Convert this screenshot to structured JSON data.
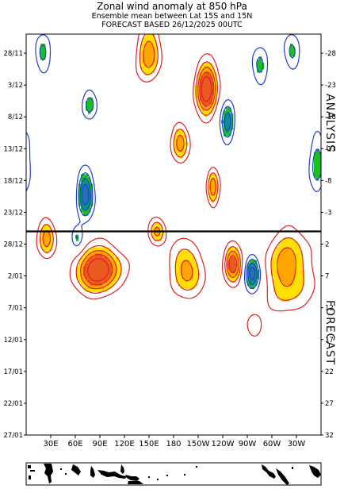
{
  "header": {
    "title": "Zonal wind anomaly at 850 hPa",
    "subtitle": "Ensemble mean between  Lat 15S and 15N",
    "forecast_line": "FORECAST  BASED 26/12/2025 00UTC"
  },
  "panel_labels": {
    "analysis": "ANALYSIS",
    "forecast": "FORECAST"
  },
  "chart_data": {
    "type": "heatmap",
    "title": "Zonal wind anomaly at 850 hPa",
    "x_tick_labels": [
      "30E",
      "60E",
      "90E",
      "120E",
      "150E",
      "180",
      "150W",
      "120W",
      "90W",
      "60W",
      "30W"
    ],
    "x_tick_longitudes": [
      30,
      60,
      90,
      120,
      150,
      180,
      210,
      240,
      270,
      300,
      330
    ],
    "xlim": [
      0,
      360
    ],
    "y_left_tick_labels": [
      "28/11",
      "3/12",
      "8/12",
      "13/12",
      "18/12",
      "23/12",
      "28/12",
      "2/01",
      "7/01",
      "12/01",
      "17/01",
      "22/01",
      "27/01"
    ],
    "y_right_tick_labels": [
      "-28",
      "-23",
      "-18",
      "-13",
      "-8",
      "-3",
      "2",
      "7",
      "12",
      "17",
      "22",
      "27",
      "32"
    ],
    "y_tick_day_index": [
      0,
      5,
      10,
      15,
      20,
      25,
      30,
      35,
      40,
      45,
      50,
      55,
      60
    ],
    "ylim_days": [
      -3,
      60
    ],
    "forecast_start_day": 28,
    "forecast_start_label": "26/12/2025",
    "contour_levels_m_per_s": [
      -5,
      -4,
      -3,
      -2,
      -1,
      1,
      2,
      3,
      4,
      5
    ],
    "contour_labels_shown": [
      "1",
      "-1",
      "2",
      "-2",
      "3",
      "-3",
      "4",
      "-4"
    ],
    "colors": {
      "positive_line": "#e02020",
      "negative_line": "#1f3fd0",
      "positive_fill_1": "#ffe000",
      "positive_fill_2": "#ffa500",
      "positive_fill_3": "#e85a20",
      "negative_fill_1": "#17c21f",
      "negative_fill_2": "#0a8f93",
      "negative_fill_3": "#2a6fb5"
    },
    "positive_anomaly_centers": [
      {
        "lon": 150,
        "day": 0,
        "peak": 3,
        "lon_radius": 14,
        "day_radius": 4
      },
      {
        "lon": 220,
        "day": 5.5,
        "peak": 5,
        "lon_radius": 12,
        "day_radius": 4
      },
      {
        "lon": 188,
        "day": 14,
        "peak": 3,
        "lon_radius": 10,
        "day_radius": 3
      },
      {
        "lon": 228,
        "day": 21,
        "peak": 3,
        "lon_radius": 7,
        "day_radius": 3
      },
      {
        "lon": 25,
        "day": 29,
        "peak": 3,
        "lon_radius": 10,
        "day_radius": 3
      },
      {
        "lon": 88,
        "day": 34,
        "peak": 5,
        "lon_radius": 26,
        "day_radius": 3.5
      },
      {
        "lon": 160,
        "day": 28,
        "peak": 3,
        "lon_radius": 10,
        "day_radius": 2
      },
      {
        "lon": 196,
        "day": 34,
        "peak": 3,
        "lon_radius": 18,
        "day_radius": 4
      },
      {
        "lon": 252,
        "day": 33,
        "peak": 4,
        "lon_radius": 10,
        "day_radius": 3
      },
      {
        "lon": 320,
        "day": 34,
        "peak": 3,
        "lon_radius": 26,
        "day_radius": 6
      },
      {
        "lon": 278,
        "day": 43,
        "peak": 2,
        "lon_radius": 10,
        "day_radius": 2
      }
    ],
    "negative_anomaly_centers": [
      {
        "lon": 20,
        "day": 0,
        "peak": -2,
        "lon_radius": 10,
        "day_radius": 3
      },
      {
        "lon": 78,
        "day": 8,
        "peak": -2,
        "lon_radius": 9,
        "day_radius": 2.5
      },
      {
        "lon": 246,
        "day": 11,
        "peak": -3,
        "lon_radius": 8,
        "day_radius": 3
      },
      {
        "lon": 285,
        "day": 2,
        "peak": -2,
        "lon_radius": 10,
        "day_radius": 3
      },
      {
        "lon": 325,
        "day": 0,
        "peak": -2,
        "lon_radius": 10,
        "day_radius": 3
      },
      {
        "lon": 355,
        "day": 17,
        "peak": -2,
        "lon_radius": 10,
        "day_radius": 5
      },
      {
        "lon": 72,
        "day": 22,
        "peak": -4,
        "lon_radius": 9,
        "day_radius": 3.5
      },
      {
        "lon": 62,
        "day": 29,
        "peak": -2,
        "lon_radius": 8,
        "day_radius": 2
      },
      {
        "lon": 276,
        "day": 34.5,
        "peak": -4,
        "lon_radius": 9,
        "day_radius": 2.5
      }
    ]
  }
}
